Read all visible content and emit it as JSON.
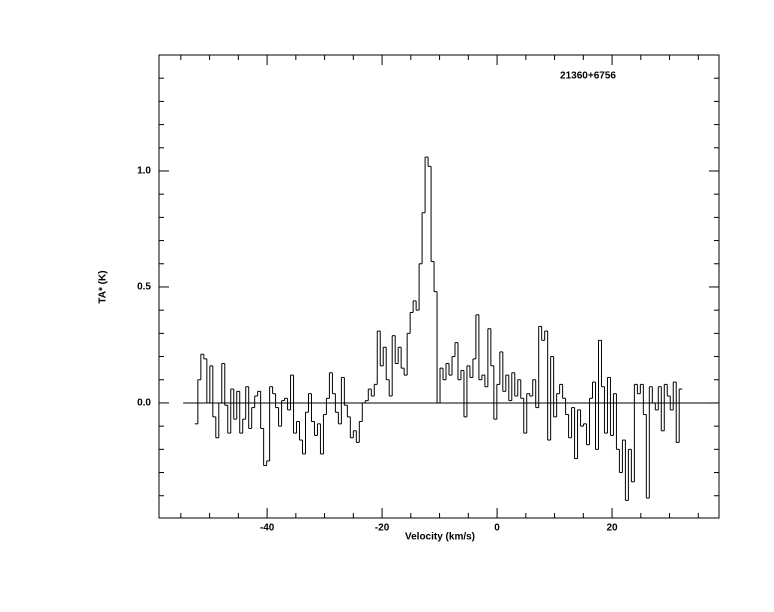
{
  "chart_data": {
    "type": "step",
    "title": "21360+6756",
    "xlabel": "Velocity (km/s)",
    "ylabel": "TA* (K)",
    "xlim": [
      -58.8,
      38.6
    ],
    "ylim": [
      -0.496,
      1.5
    ],
    "xticks": [
      -40,
      -20,
      0,
      20
    ],
    "xminorticks": [
      -55,
      -50,
      -45,
      -35,
      -30,
      -25,
      -15,
      -10,
      -5,
      5,
      10,
      15,
      25,
      30,
      35
    ],
    "yticks": [
      {
        "value": 0,
        "label": "0.0"
      },
      0.5,
      {
        "value": 1,
        "label": "1.0"
      }
    ],
    "yminorticks": [
      -0.4,
      -0.3,
      -0.2,
      -0.1,
      0.1,
      0.2,
      0.3,
      0.4,
      0.6,
      0.7,
      0.8,
      0.9,
      1.1,
      1.2,
      1.3,
      1.4
    ],
    "baseline": {
      "y": 0,
      "x": [
        -54.6,
        38.6
      ]
    },
    "color": "#000000",
    "x": [
      -52.3,
      -51.78,
      -51.26,
      -50.74,
      -50.22,
      -49.7,
      -49.18,
      -48.66,
      -48.14,
      -47.62,
      -47.1,
      -46.58,
      -46.06,
      -45.54,
      -45.02,
      -44.5,
      -43.98,
      -43.46,
      -42.94,
      -42.42,
      -41.9,
      -41.38,
      -40.86,
      -40.34,
      -39.82,
      -39.3,
      -38.78,
      -38.26,
      -37.74,
      -37.22,
      -36.7,
      -36.18,
      -35.66,
      -35.14,
      -34.62,
      -34.1,
      -33.58,
      -33.06,
      -32.54,
      -32.02,
      -31.5,
      -30.98,
      -30.46,
      -29.94,
      -29.42,
      -28.9,
      -28.38,
      -27.86,
      -27.34,
      -26.82,
      -26.3,
      -25.78,
      -25.26,
      -24.74,
      -24.22,
      -23.7,
      -23.18,
      -22.66,
      -22.14,
      -21.62,
      -21.1,
      -20.58,
      -20.06,
      -19.54,
      -19.02,
      -18.5,
      -17.98,
      -17.46,
      -16.94,
      -16.42,
      -15.9,
      -15.38,
      -14.86,
      -14.34,
      -13.82,
      -13.3,
      -12.78,
      -12.26,
      -11.74,
      -11.22,
      -10.7,
      -10.18,
      -9.66,
      -9.14,
      -8.62,
      -8.1,
      -7.58,
      -7.06,
      -6.54,
      -6.02,
      -5.5,
      -4.98,
      -4.46,
      -3.94,
      -3.42,
      -2.9,
      -2.38,
      -1.86,
      -1.34,
      -0.82,
      -0.3,
      0.22,
      0.74,
      1.26,
      1.78,
      2.3,
      2.82,
      3.34,
      3.86,
      4.38,
      4.9,
      5.42,
      5.94,
      6.46,
      6.98,
      7.5,
      8.02,
      8.54,
      9.06,
      9.58,
      10.1,
      10.62,
      11.14,
      11.66,
      12.18,
      12.7,
      13.22,
      13.74,
      14.26,
      14.78,
      15.3,
      15.82,
      16.34,
      16.86,
      17.38,
      17.9,
      18.42,
      18.94,
      19.46,
      19.98,
      20.5,
      21.02,
      21.54,
      22.06,
      22.58,
      23.1,
      23.62,
      24.14,
      24.66,
      25.18,
      25.7,
      26.22,
      26.74,
      27.26,
      27.78,
      28.3,
      28.82,
      29.34,
      29.86,
      30.38,
      30.9,
      31.42,
      31.94
    ],
    "values": [
      -0.09,
      0.1,
      0.21,
      0.19,
      0.0,
      0.16,
      -0.06,
      -0.15,
      0.0,
      0.17,
      -0.01,
      -0.13,
      0.06,
      -0.07,
      0.05,
      -0.13,
      -0.07,
      0.07,
      -0.11,
      -0.02,
      0.03,
      0.05,
      -0.11,
      -0.27,
      -0.25,
      0.07,
      0.04,
      -0.02,
      -0.1,
      0.01,
      0.02,
      -0.03,
      0.12,
      -0.13,
      -0.08,
      -0.16,
      -0.22,
      -0.04,
      0.04,
      -0.08,
      -0.14,
      -0.09,
      -0.22,
      -0.05,
      0.02,
      0.13,
      0.04,
      -0.04,
      -0.09,
      0.11,
      -0.01,
      -0.06,
      -0.15,
      -0.12,
      -0.17,
      -0.08,
      0.0,
      0.01,
      0.06,
      0.03,
      0.08,
      0.31,
      0.16,
      0.24,
      0.1,
      0.03,
      0.29,
      0.17,
      0.24,
      0.15,
      0.12,
      0.3,
      0.39,
      0.44,
      0.4,
      0.6,
      0.82,
      1.06,
      1.02,
      0.61,
      0.48,
      0.0,
      0.15,
      0.1,
      0.17,
      0.12,
      0.2,
      0.26,
      0.1,
      0.14,
      -0.06,
      0.16,
      0.11,
      0.19,
      0.38,
      0.1,
      0.12,
      0.07,
      0.32,
      0.16,
      -0.07,
      0.08,
      0.22,
      0.05,
      0.12,
      0.01,
      0.13,
      0.03,
      0.1,
      0.02,
      -0.13,
      0.04,
      0.03,
      0.1,
      -0.02,
      0.33,
      0.27,
      0.31,
      -0.16,
      0.2,
      -0.06,
      0.04,
      0.08,
      0.02,
      -0.05,
      -0.15,
      -0.02,
      -0.24,
      -0.03,
      -0.1,
      -0.09,
      -0.18,
      0.02,
      0.09,
      -0.2,
      0.27,
      0.07,
      -0.13,
      0.11,
      -0.14,
      0.04,
      -0.2,
      -0.3,
      -0.16,
      -0.42,
      -0.2,
      -0.34,
      0.08,
      0.04,
      0.08,
      -0.05,
      -0.41,
      0.07,
      0.0,
      -0.03,
      0.07,
      -0.12,
      0.08,
      0.03,
      -0.03,
      0.09,
      -0.17,
      0.06
    ]
  }
}
